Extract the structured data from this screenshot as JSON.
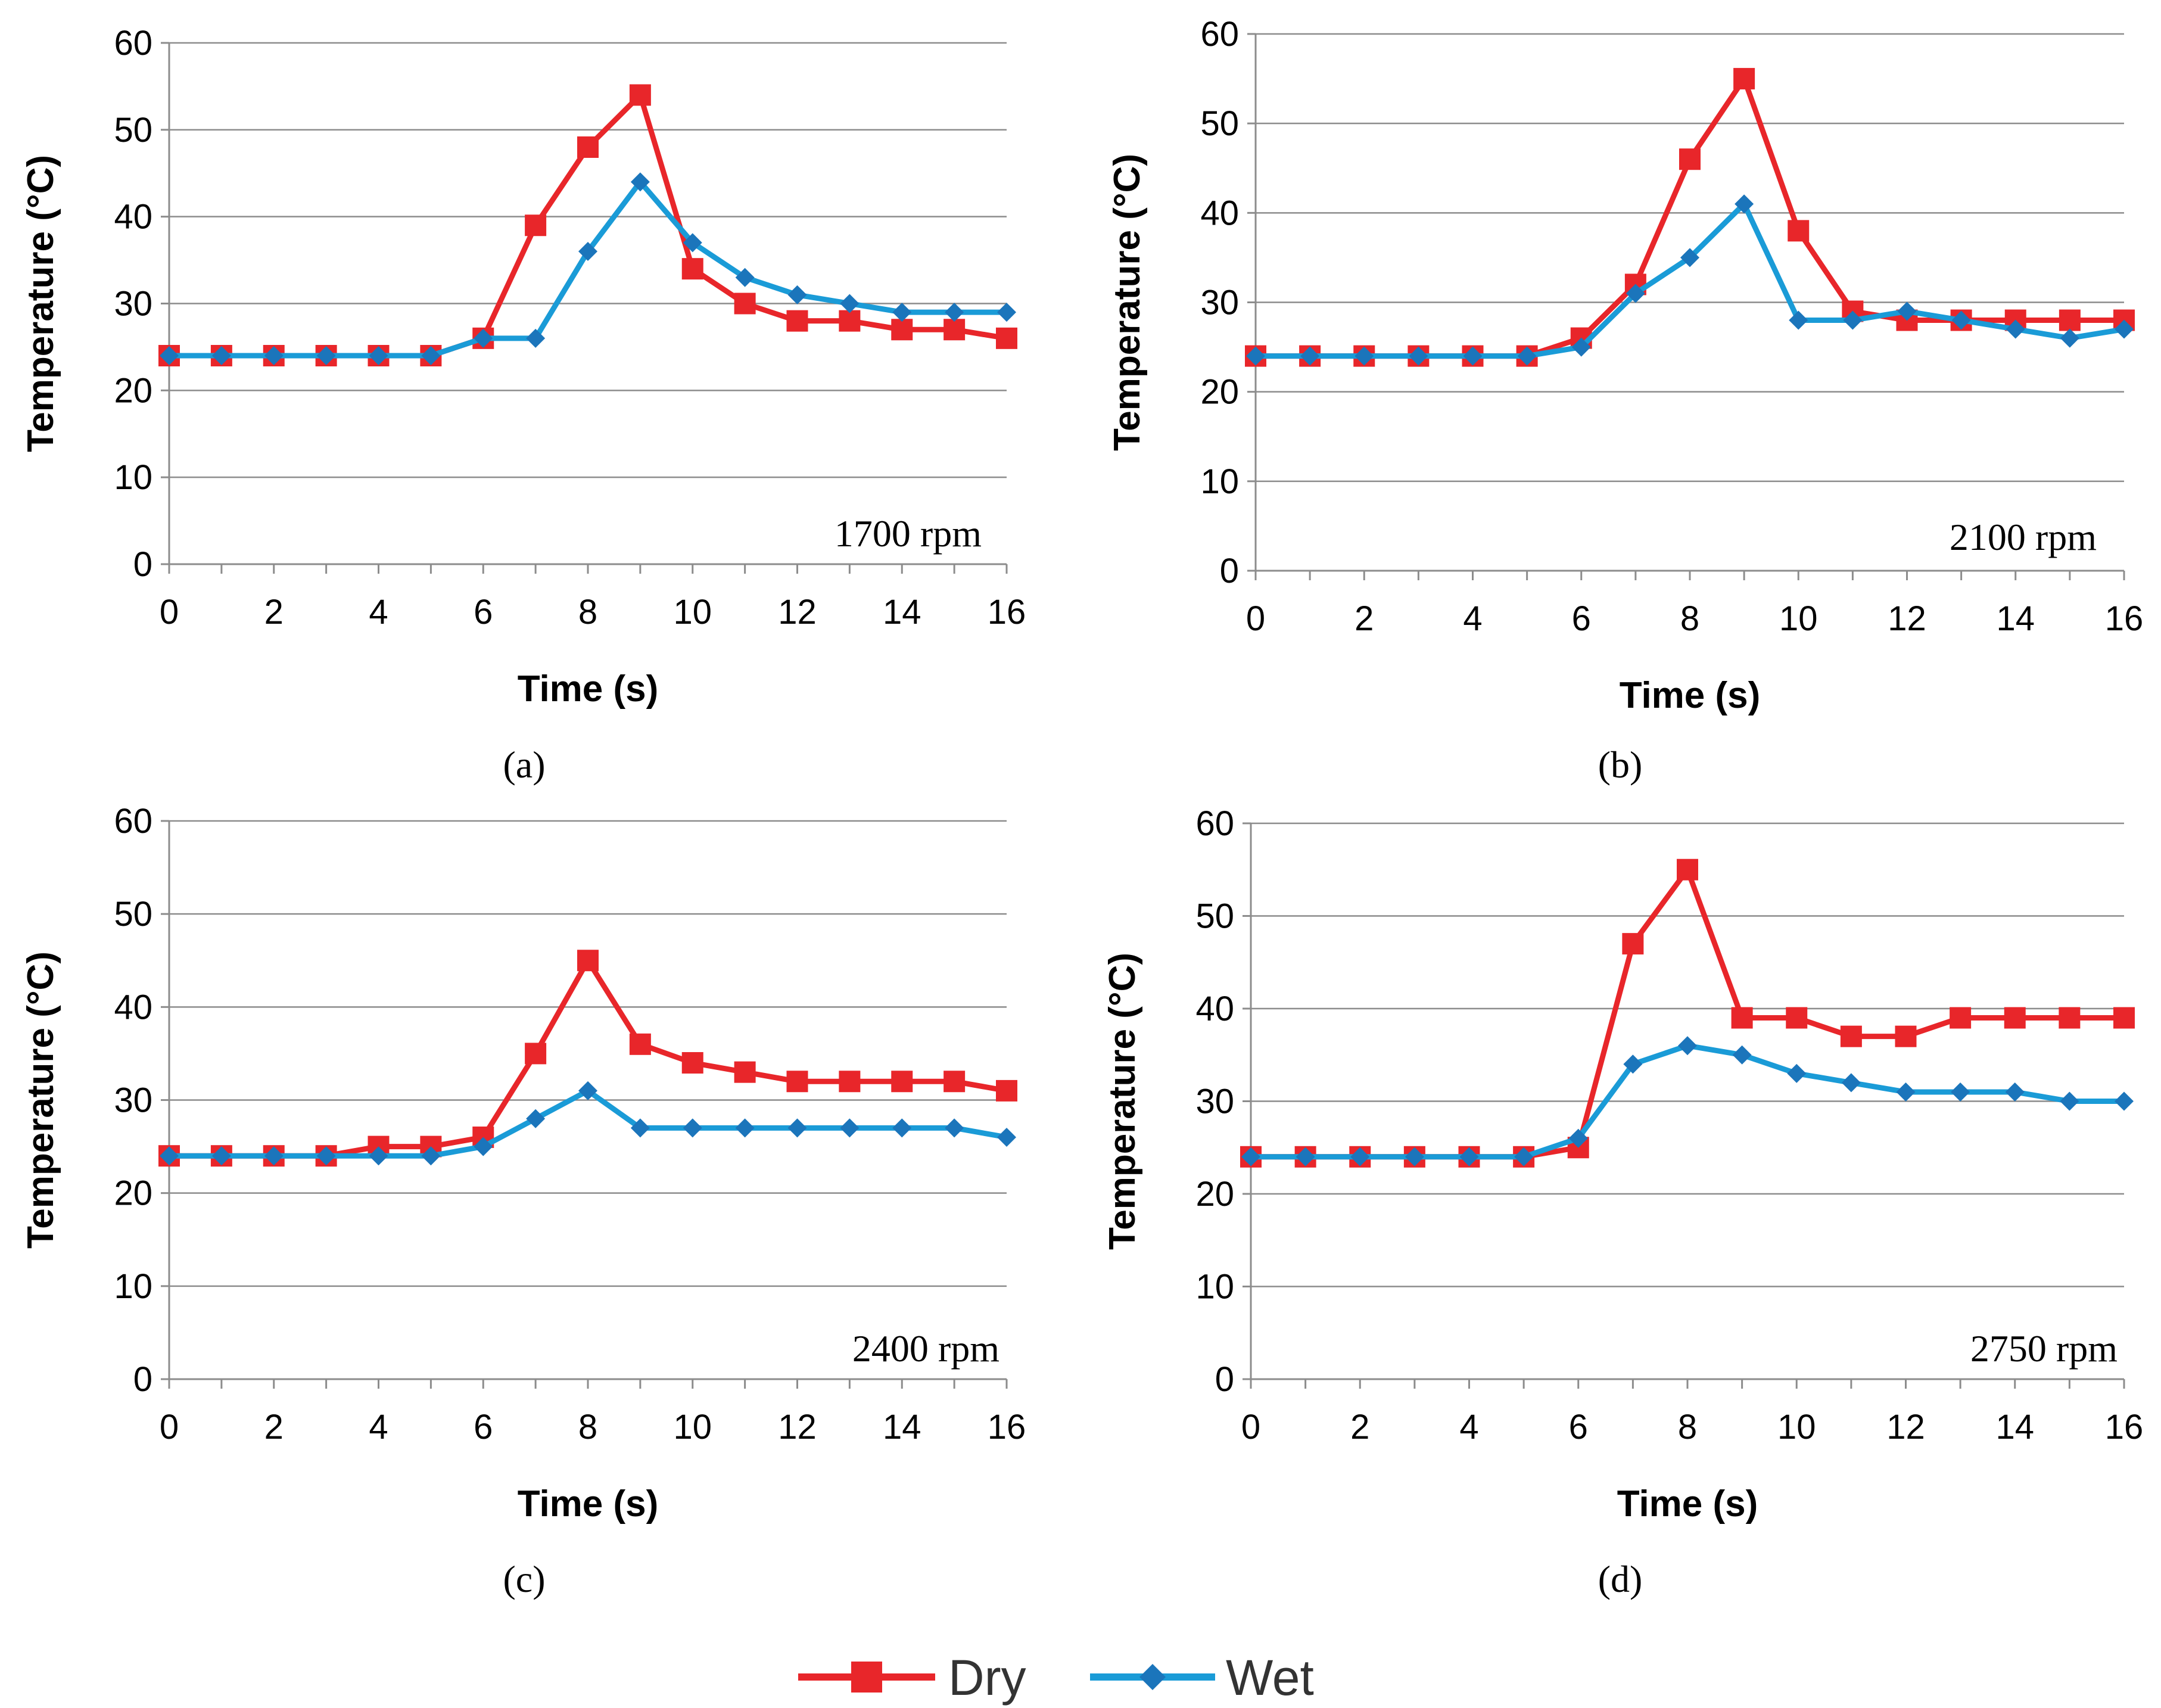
{
  "chart_data": [
    {
      "type": "line",
      "panel_label": "(a)",
      "annotation": "1700 rpm",
      "xlabel": "Time (s)",
      "ylabel": "Temperature (°C)",
      "xlim": [
        0,
        16
      ],
      "ylim": [
        0,
        60
      ],
      "x_ticks": [
        0,
        2,
        4,
        6,
        8,
        10,
        12,
        14,
        16
      ],
      "y_ticks": [
        0,
        10,
        20,
        30,
        40,
        50,
        60
      ],
      "x": [
        0,
        1,
        2,
        3,
        4,
        5,
        6,
        7,
        8,
        9,
        10,
        11,
        12,
        13,
        14,
        15,
        16
      ],
      "series": [
        {
          "name": "Dry",
          "color": "#e8262a",
          "values": [
            24,
            24,
            24,
            24,
            24,
            24,
            26,
            39,
            48,
            54,
            34,
            30,
            28,
            28,
            27,
            27,
            26
          ]
        },
        {
          "name": "Wet",
          "color": "#1a9bd7",
          "values": [
            24,
            24,
            24,
            24,
            24,
            24,
            26,
            26,
            36,
            44,
            37,
            33,
            31,
            30,
            29,
            29,
            29
          ]
        }
      ]
    },
    {
      "type": "line",
      "panel_label": "(b)",
      "annotation": "2100 rpm",
      "xlabel": "Time (s)",
      "ylabel": "Temperature (°C)",
      "xlim": [
        0,
        16
      ],
      "ylim": [
        0,
        60
      ],
      "x_ticks": [
        0,
        2,
        4,
        6,
        8,
        10,
        12,
        14,
        16
      ],
      "y_ticks": [
        0,
        10,
        20,
        30,
        40,
        50,
        60
      ],
      "x": [
        0,
        1,
        2,
        3,
        4,
        5,
        6,
        7,
        8,
        9,
        10,
        11,
        12,
        13,
        14,
        15,
        16
      ],
      "series": [
        {
          "name": "Dry",
          "color": "#e8262a",
          "values": [
            24,
            24,
            24,
            24,
            24,
            24,
            26,
            32,
            46,
            55,
            38,
            29,
            28,
            28,
            28,
            28,
            28
          ]
        },
        {
          "name": "Wet",
          "color": "#1a9bd7",
          "values": [
            24,
            24,
            24,
            24,
            24,
            24,
            25,
            31,
            35,
            41,
            28,
            28,
            29,
            28,
            27,
            26,
            27
          ]
        }
      ]
    },
    {
      "type": "line",
      "panel_label": "(c)",
      "annotation": "2400 rpm",
      "xlabel": "Time (s)",
      "ylabel": "Temperature (°C)",
      "xlim": [
        0,
        16
      ],
      "ylim": [
        0,
        60
      ],
      "x_ticks": [
        0,
        2,
        4,
        6,
        8,
        10,
        12,
        14,
        16
      ],
      "y_ticks": [
        0,
        10,
        20,
        30,
        40,
        50,
        60
      ],
      "x": [
        0,
        1,
        2,
        3,
        4,
        5,
        6,
        7,
        8,
        9,
        10,
        11,
        12,
        13,
        14,
        15,
        16
      ],
      "series": [
        {
          "name": "Dry",
          "color": "#e8262a",
          "values": [
            24,
            24,
            24,
            24,
            25,
            25,
            26,
            35,
            45,
            36,
            34,
            33,
            32,
            32,
            32,
            32,
            31
          ]
        },
        {
          "name": "Wet",
          "color": "#1a9bd7",
          "values": [
            24,
            24,
            24,
            24,
            24,
            24,
            25,
            28,
            31,
            27,
            27,
            27,
            27,
            27,
            27,
            27,
            26
          ]
        }
      ]
    },
    {
      "type": "line",
      "panel_label": "(d)",
      "annotation": "2750 rpm",
      "xlabel": "Time (s)",
      "ylabel": "Temperature (°C)",
      "xlim": [
        0,
        16
      ],
      "ylim": [
        0,
        60
      ],
      "x_ticks": [
        0,
        2,
        4,
        6,
        8,
        10,
        12,
        14,
        16
      ],
      "y_ticks": [
        0,
        10,
        20,
        30,
        40,
        50,
        60
      ],
      "x": [
        0,
        1,
        2,
        3,
        4,
        5,
        6,
        7,
        8,
        9,
        10,
        11,
        12,
        13,
        14,
        15,
        16
      ],
      "series": [
        {
          "name": "Dry",
          "color": "#e8262a",
          "values": [
            24,
            24,
            24,
            24,
            24,
            24,
            25,
            47,
            55,
            39,
            39,
            37,
            37,
            39,
            39,
            39,
            39
          ]
        },
        {
          "name": "Wet",
          "color": "#1a9bd7",
          "values": [
            24,
            24,
            24,
            24,
            24,
            24,
            26,
            34,
            36,
            35,
            33,
            32,
            31,
            31,
            31,
            30,
            30
          ]
        }
      ]
    }
  ],
  "legend": {
    "position": "bottom-center",
    "entries": [
      {
        "label": "Dry",
        "color": "#e8262a",
        "marker": "square"
      },
      {
        "label": "Wet",
        "color": "#1a9bd7",
        "marker": "diamond"
      }
    ]
  }
}
